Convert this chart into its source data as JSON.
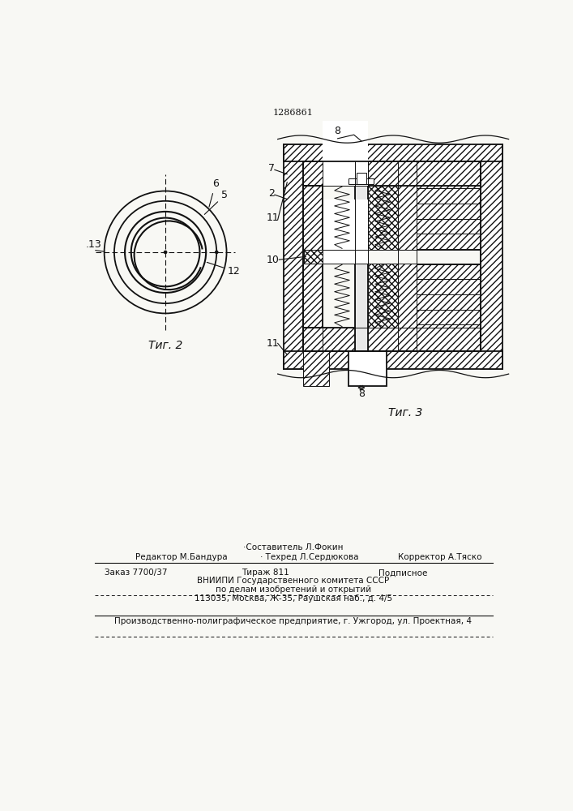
{
  "patent_number": "1286861",
  "fig2_label": "Τиг. 2",
  "fig3_label": "Τиг. 3",
  "bg_color": "#f8f8f4",
  "line_color": "#111111",
  "line1_text": "·Составитель Л.Фокин",
  "line2a_text": "Редактор М.Бандура",
  "line2b_text": "· Техред Л.Сердюкова",
  "line2c_text": "Корректор А.Тяско",
  "line3a_text": "Заказ 7700/37",
  "line3b_text": "Тираж 811",
  "line3c_text": "Подписное",
  "line4_text": "ВНИИПИ Государственного комитета СССР",
  "line5_text": "по делам изобретений и открытий",
  "line6_text": "113035, Москва, Ж-35, Раушская наб., д. 4/5",
  "line7_text": "Производственно-полиграфическое предприятие, г. Ужгород, ул. Проектная, 4"
}
